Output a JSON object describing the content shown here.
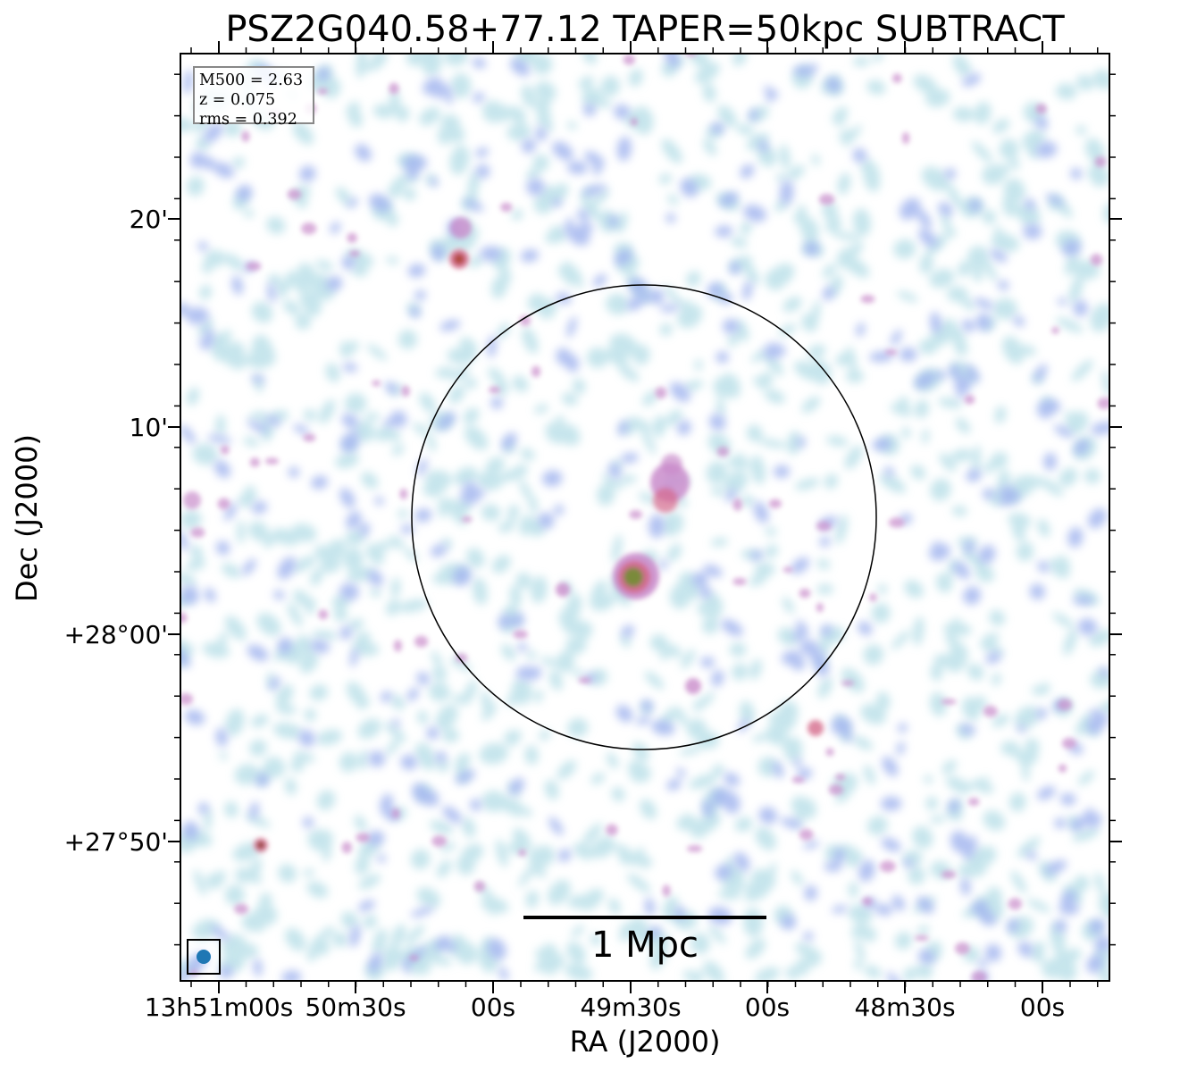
{
  "title": "PSZ2G040.58+77.12 TAPER=50kpc SUBTRACT",
  "xlabel": "RA (J2000)",
  "ylabel": "Dec (J2000)",
  "info": {
    "m500": "M500 = 2.63",
    "z": "z = 0.075",
    "rms": "rms = 0.392"
  },
  "scalebar_label": "1 Mpc",
  "ra_ticks": [
    "13h51m00s",
    "50m30s",
    "00s",
    "49m30s",
    "00s",
    "48m30s",
    "00s"
  ],
  "dec_ticks": [
    "20'",
    "10'",
    "+28°00'",
    "+27°50'"
  ],
  "colors": {
    "faint": "#b4dde6",
    "low": "#9fb2ee",
    "mid": "#c98ccb",
    "high": "#d46a8c",
    "peak": "#7a8a3a",
    "beam": "#1f77b4"
  }
}
